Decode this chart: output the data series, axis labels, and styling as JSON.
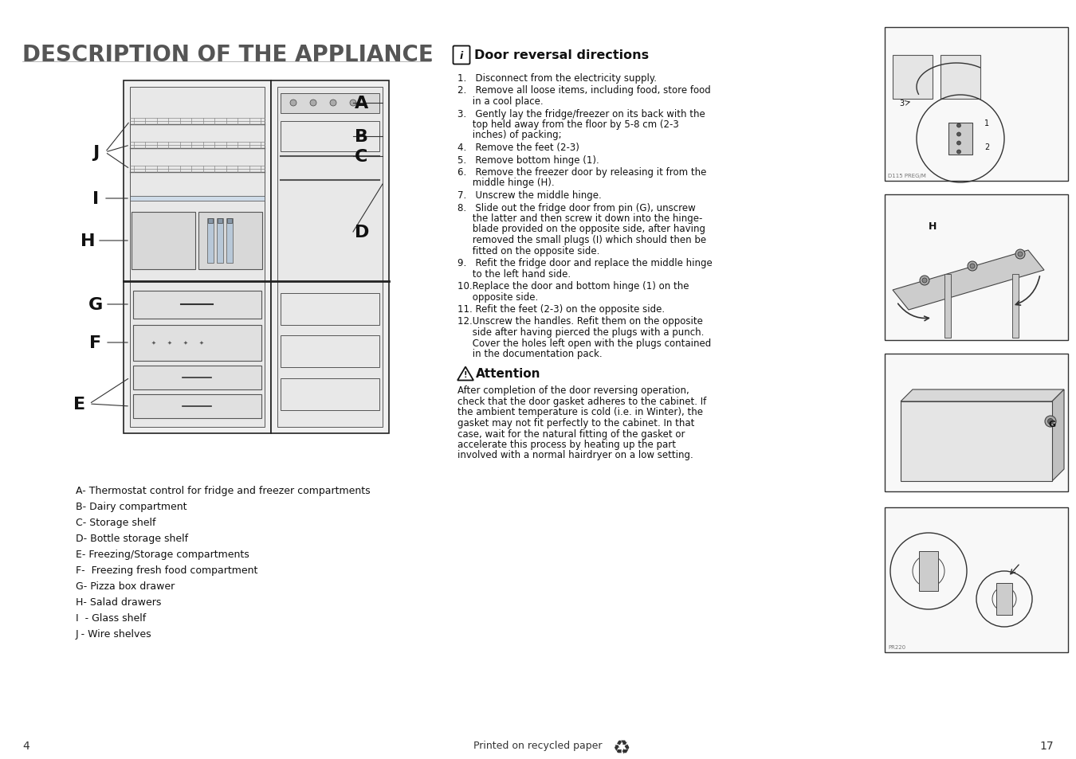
{
  "bg_color": "#ffffff",
  "title": "DESCRIPTION OF THE APPLIANCE",
  "title_color": "#555555",
  "title_fontsize": 20,
  "section2_title": "Door reversal directions",
  "section2_title_fontsize": 11.5,
  "attention_title": "Attention",
  "legend_items": [
    "A- Thermostat control for fridge and freezer compartments",
    "B- Dairy compartment",
    "C- Storage shelf",
    "D- Bottle storage shelf",
    "E- Freezing/Storage compartments",
    "F-  Freezing fresh food compartment",
    "G- Pizza box drawer",
    "H- Salad drawers",
    "I  - Glass shelf",
    "J - Wire shelves"
  ],
  "door_steps": [
    "1.   Disconnect from the electricity supply.",
    "2.   Remove all loose items, including food, store food\n     in a cool place.",
    "3.   Gently lay the fridge/freezer on its back with the\n     top held away from the floor by 5-8 cm (2-3\n     inches) of packing;",
    "4.   Remove the feet (2-3)",
    "5.   Remove bottom hinge (1).",
    "6.   Remove the freezer door by releasing it from the\n     middle hinge (H).",
    "7.   Unscrew the middle hinge.",
    "8.   Slide out the fridge door from pin (G), unscrew\n     the latter and then screw it down into the hinge-\n     blade provided on the opposite side, after having\n     removed the small plugs (I) which should then be\n     fitted on the opposite side.",
    "9.   Refit the fridge door and replace the middle hinge\n     to the left hand side.",
    "10.Replace the door and bottom hinge (1) on the\n     opposite side.",
    "11. Refit the feet (2-3) on the opposite side.",
    "12.Unscrew the handles. Refit them on the opposite\n     side after having pierced the plugs with a punch.\n     Cover the holes left open with the plugs contained\n     in the documentation pack."
  ],
  "attention_text": "After completion of the door reversing operation,\ncheck that the door gasket adheres to the cabinet. If\nthe ambient temperature is cold (i.e. in Winter), the\ngasket may not fit perfectly to the cabinet. In that\ncase, wait for the natural fitting of the gasket or\naccelerate this process by heating up the part\ninvolved with a normal hairdryer on a low setting.",
  "page_left": "4",
  "page_right": "17",
  "footer_text": "Printed on recycled paper"
}
